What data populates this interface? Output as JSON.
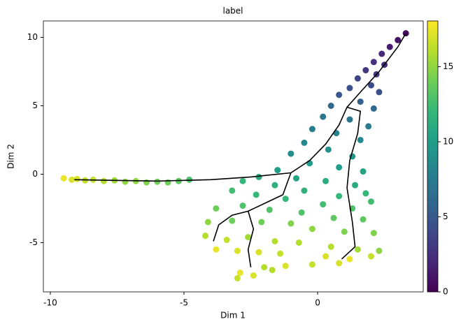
{
  "chart_data": {
    "type": "scatter",
    "title": "label",
    "xlabel": "Dim 1",
    "ylabel": "Dim 2",
    "xlim": [
      -10.26,
      3.95
    ],
    "ylim": [
      -8.6,
      11.2
    ],
    "xticks": [
      -10,
      -5,
      0
    ],
    "yticks": [
      -5,
      0,
      5,
      10
    ],
    "colormap": "viridis",
    "clim": [
      0,
      18.05
    ],
    "cticks": [
      0,
      5,
      10,
      15
    ],
    "grid": false,
    "x": [
      -9.5,
      -9.2,
      -9.0,
      -8.7,
      -8.4,
      -8.0,
      -7.6,
      -7.2,
      -6.8,
      -6.4,
      -6.0,
      -5.6,
      -5.2,
      -4.8,
      3.3,
      3.0,
      2.7,
      2.4,
      2.1,
      2.5,
      1.8,
      2.2,
      1.5,
      2.0,
      1.2,
      2.3,
      0.8,
      1.6,
      0.5,
      2.1,
      0.2,
      1.2,
      1.9,
      -0.2,
      0.7,
      1.6,
      -0.5,
      0.4,
      1.3,
      -1.0,
      -0.3,
      0.8,
      1.7,
      -1.5,
      -2.2,
      -0.8,
      0.3,
      1.4,
      -2.8,
      -1.6,
      -0.5,
      0.8,
      1.8,
      -3.2,
      -2.3,
      -1.2,
      0.2,
      1.3,
      2.0,
      -3.8,
      -2.8,
      -1.8,
      -0.6,
      0.6,
      1.7,
      -4.1,
      -3.2,
      -2.1,
      -1.0,
      -0.2,
      1.0,
      2.1,
      -4.2,
      -3.4,
      -2.6,
      -1.6,
      -0.7,
      0.5,
      1.5,
      2.3,
      -3.8,
      -3.0,
      -2.2,
      -1.4,
      0.3,
      1.2,
      2.0,
      -2.0,
      -1.2,
      -0.2,
      0.8,
      -2.9,
      -2.4,
      -3.0,
      -1.7
    ],
    "y": [
      -0.3,
      -0.4,
      -0.35,
      -0.45,
      -0.4,
      -0.5,
      -0.45,
      -0.55,
      -0.5,
      -0.6,
      -0.55,
      -0.6,
      -0.5,
      -0.4,
      10.3,
      9.8,
      9.3,
      8.8,
      8.2,
      8.0,
      7.6,
      7.3,
      7.0,
      6.5,
      6.3,
      6.0,
      5.8,
      5.3,
      5.0,
      4.8,
      4.2,
      4.0,
      3.5,
      3.3,
      3.0,
      2.5,
      2.3,
      1.8,
      1.3,
      1.5,
      0.8,
      0.5,
      0.2,
      0.3,
      -0.2,
      -0.3,
      -0.5,
      -0.8,
      -0.5,
      -0.8,
      -1.2,
      -1.6,
      -1.4,
      -1.2,
      -1.5,
      -1.8,
      -2.2,
      -2.5,
      -2.0,
      -2.5,
      -2.3,
      -2.6,
      -2.8,
      -3.2,
      -3.3,
      -3.5,
      -3.4,
      -3.5,
      -3.6,
      -4.0,
      -4.2,
      -4.3,
      -4.5,
      -4.8,
      -4.6,
      -4.9,
      -5.0,
      -5.3,
      -5.5,
      -5.6,
      -5.5,
      -5.6,
      -5.7,
      -5.8,
      -6.0,
      -6.2,
      -6.0,
      -6.8,
      -6.7,
      -6.6,
      -6.5,
      -7.2,
      -7.4,
      -7.6,
      -7.0
    ],
    "c": [
      17.5,
      17,
      17,
      16.5,
      16.5,
      16,
      15.5,
      15,
      15,
      14.5,
      14,
      14,
      13.5,
      13,
      0.5,
      1,
      1.5,
      2,
      2.5,
      2.5,
      3,
      3,
      3.5,
      4,
      4.5,
      4.5,
      5,
      5.5,
      6,
      6,
      7,
      7,
      7.5,
      7.5,
      8,
      8.5,
      8.5,
      9,
      9.5,
      9,
      10,
      10,
      10.5,
      10,
      11,
      10.5,
      11,
      11,
      12,
      11.5,
      11.5,
      12,
      12,
      12.5,
      12,
      12,
      12.5,
      13,
      12.5,
      14,
      13,
      13,
      13,
      13.5,
      13.5,
      15,
      14,
      14,
      14.5,
      15,
      14.5,
      14.5,
      16,
      16.5,
      15.5,
      16,
      16,
      16,
      15.5,
      15,
      17.5,
      17,
      17,
      16.5,
      17,
      17.5,
      16.5,
      16,
      17,
      16.5,
      17,
      17.5,
      17,
      16.5,
      16
    ],
    "trajectories": [
      {
        "color": "#000000",
        "x": [
          -9.1,
          -6,
          -4,
          -2.5,
          -1
        ],
        "y": [
          -0.4,
          -0.5,
          -0.4,
          -0.2,
          0.1
        ]
      },
      {
        "color": "#000000",
        "x": [
          -1,
          -0.3,
          0.3,
          0.8,
          1.1,
          1.6,
          2.3,
          3.0,
          3.3
        ],
        "y": [
          0.1,
          1,
          2.2,
          3.6,
          4.9,
          6,
          7.5,
          9.3,
          10.3
        ]
      },
      {
        "color": "#000000",
        "x": [
          1.1,
          1.6,
          1.5,
          1.2,
          1.1,
          1.3,
          1.4,
          0.9
        ],
        "y": [
          4.9,
          4.6,
          3,
          1,
          -1,
          -3.5,
          -5.3,
          -6.2
        ]
      },
      {
        "color": "#000000",
        "x": [
          -1,
          -1.3,
          -2.6,
          -3.2,
          -3.7,
          -3.9
        ],
        "y": [
          0.1,
          -1.5,
          -2.7,
          -3.0,
          -3.7,
          -4.9
        ]
      },
      {
        "color": "#000000",
        "x": [
          -2.6,
          -2.4,
          -2.6,
          -2.5
        ],
        "y": [
          -2.7,
          -4,
          -5.5,
          -6.8
        ]
      }
    ]
  }
}
